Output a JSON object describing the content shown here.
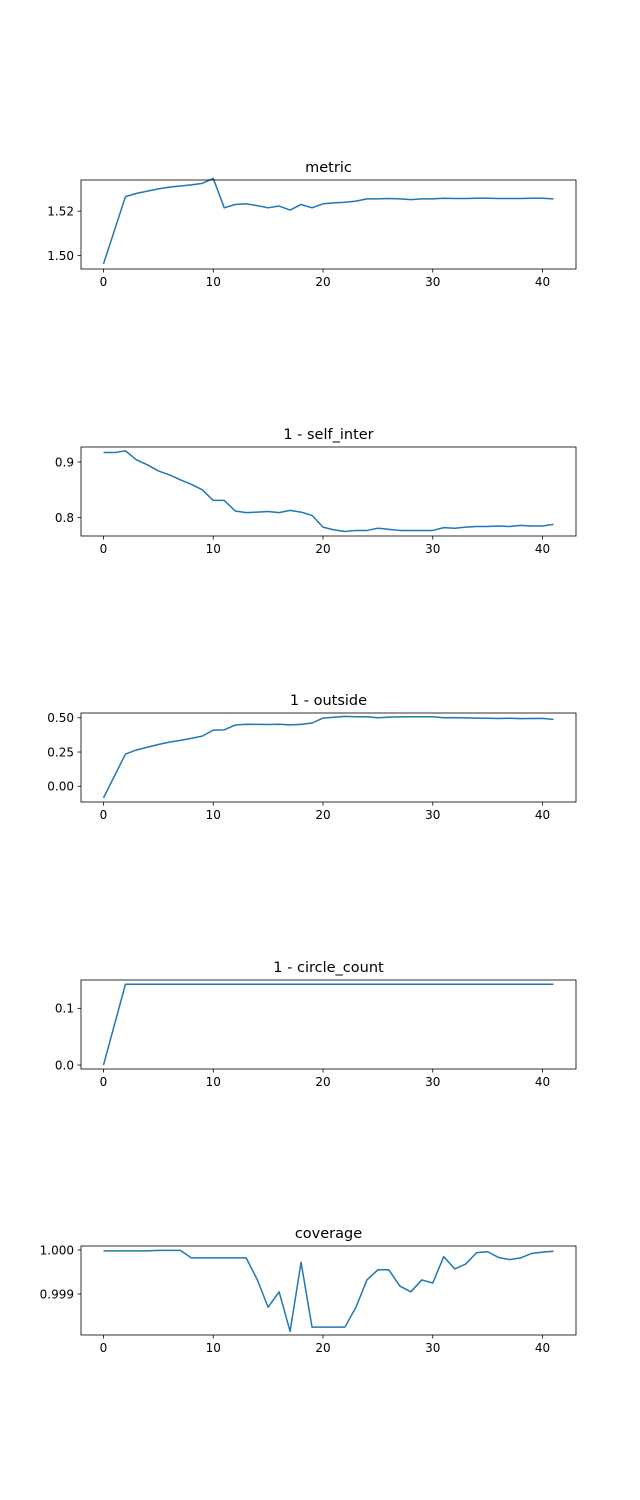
{
  "line_color": "#1f77b4",
  "chart_data": [
    {
      "type": "line",
      "title": "metric",
      "xlim": [
        -2.05,
        43.05
      ],
      "ylim": [
        1.494,
        1.534
      ],
      "xticks": [
        0,
        10,
        20,
        30,
        40
      ],
      "xtick_labels": [
        "0",
        "10",
        "20",
        "30",
        "40"
      ],
      "yticks": [
        1.5,
        1.52
      ],
      "ytick_labels": [
        "1.50",
        "1.52"
      ],
      "grid": false,
      "series": [
        {
          "x": [
            0,
            2,
            3,
            4,
            5,
            6,
            7,
            8,
            9,
            10,
            11,
            12,
            13,
            14,
            15,
            16,
            17,
            18,
            19,
            20,
            21,
            22,
            23,
            24,
            25,
            26,
            27,
            28,
            29,
            30,
            31,
            32,
            33,
            34,
            35,
            36,
            37,
            38,
            39,
            40,
            41
          ],
          "values": [
            1.4963,
            1.5265,
            1.528,
            1.529,
            1.53,
            1.5308,
            1.5313,
            1.5318,
            1.5325,
            1.5347,
            1.5215,
            1.523,
            1.5233,
            1.5225,
            1.5215,
            1.5223,
            1.5205,
            1.523,
            1.5215,
            1.5233,
            1.5237,
            1.524,
            1.5245,
            1.5255,
            1.5255,
            1.5257,
            1.5255,
            1.5252,
            1.5255,
            1.5255,
            1.5258,
            1.5257,
            1.5257,
            1.5258,
            1.5258,
            1.5257,
            1.5257,
            1.5257,
            1.5258,
            1.5258,
            1.5255
          ]
        }
      ]
    },
    {
      "type": "line",
      "title": "1 - self_inter",
      "xlim": [
        -2.05,
        43.05
      ],
      "ylim": [
        0.767,
        0.927
      ],
      "xticks": [
        0,
        10,
        20,
        30,
        40
      ],
      "xtick_labels": [
        "0",
        "10",
        "20",
        "30",
        "40"
      ],
      "yticks": [
        0.8,
        0.9
      ],
      "ytick_labels": [
        "0.8",
        "0.9"
      ],
      "grid": false,
      "series": [
        {
          "x": [
            0,
            1,
            2,
            3,
            4,
            5,
            6,
            7,
            8,
            9,
            10,
            11,
            12,
            13,
            14,
            15,
            16,
            17,
            18,
            19,
            20,
            21,
            22,
            23,
            24,
            25,
            26,
            27,
            28,
            29,
            30,
            31,
            32,
            33,
            34,
            35,
            36,
            37,
            38,
            39,
            40,
            41
          ],
          "values": [
            0.917,
            0.917,
            0.92,
            0.904,
            0.895,
            0.884,
            0.877,
            0.868,
            0.86,
            0.85,
            0.831,
            0.831,
            0.812,
            0.809,
            0.81,
            0.811,
            0.809,
            0.813,
            0.81,
            0.804,
            0.783,
            0.778,
            0.775,
            0.777,
            0.777,
            0.781,
            0.779,
            0.777,
            0.777,
            0.777,
            0.777,
            0.782,
            0.781,
            0.783,
            0.784,
            0.784,
            0.785,
            0.784,
            0.786,
            0.785,
            0.785,
            0.788
          ]
        }
      ]
    },
    {
      "type": "line",
      "title": "1 - outside",
      "xlim": [
        -2.05,
        43.05
      ],
      "ylim": [
        -0.115,
        0.535
      ],
      "xticks": [
        0,
        10,
        20,
        30,
        40
      ],
      "xtick_labels": [
        "0",
        "10",
        "20",
        "30",
        "40"
      ],
      "yticks": [
        0.0,
        0.25,
        0.5
      ],
      "ytick_labels": [
        "0.00",
        "0.25",
        "0.50"
      ],
      "grid": false,
      "series": [
        {
          "x": [
            0,
            2,
            3,
            4,
            5,
            6,
            7,
            8,
            9,
            10,
            11,
            12,
            13,
            14,
            15,
            16,
            17,
            18,
            19,
            20,
            21,
            22,
            23,
            24,
            25,
            26,
            27,
            28,
            29,
            30,
            31,
            32,
            33,
            34,
            35,
            36,
            37,
            38,
            39,
            40,
            41
          ],
          "values": [
            -0.085,
            0.235,
            0.265,
            0.285,
            0.305,
            0.322,
            0.335,
            0.35,
            0.366,
            0.41,
            0.412,
            0.447,
            0.453,
            0.452,
            0.451,
            0.453,
            0.448,
            0.452,
            0.462,
            0.498,
            0.504,
            0.51,
            0.508,
            0.508,
            0.5,
            0.505,
            0.507,
            0.508,
            0.508,
            0.508,
            0.5,
            0.501,
            0.499,
            0.498,
            0.497,
            0.495,
            0.497,
            0.494,
            0.495,
            0.496,
            0.488
          ]
        }
      ]
    },
    {
      "type": "line",
      "title": "1 - circle_count",
      "xlim": [
        -2.05,
        43.05
      ],
      "ylim": [
        -0.007,
        0.15
      ],
      "xticks": [
        0,
        10,
        20,
        30,
        40
      ],
      "xtick_labels": [
        "0",
        "10",
        "20",
        "30",
        "40"
      ],
      "yticks": [
        0.0,
        0.1
      ],
      "ytick_labels": [
        "0.0",
        "0.1"
      ],
      "grid": false,
      "series": [
        {
          "x": [
            0,
            2,
            41
          ],
          "values": [
            0.0,
            0.1425,
            0.1425
          ]
        }
      ]
    },
    {
      "type": "line",
      "title": "coverage",
      "xlim": [
        -2.05,
        43.05
      ],
      "ylim": [
        0.99807,
        1.00009
      ],
      "xticks": [
        0,
        10,
        20,
        30,
        40
      ],
      "xtick_labels": [
        "0",
        "10",
        "20",
        "30",
        "40"
      ],
      "yticks": [
        0.999,
        1.0
      ],
      "ytick_labels": [
        "0.999",
        "1.000"
      ],
      "grid": false,
      "series": [
        {
          "x": [
            0,
            1,
            2,
            3,
            4,
            5,
            6,
            7,
            8,
            9,
            10,
            11,
            12,
            13,
            14,
            15,
            16,
            17,
            18,
            19,
            20,
            21,
            22,
            23,
            24,
            25,
            26,
            27,
            28,
            29,
            30,
            31,
            32,
            33,
            34,
            35,
            36,
            37,
            38,
            39,
            40,
            41
          ],
          "values": [
            0.99998,
            0.99998,
            0.99998,
            0.99998,
            0.99998,
            0.99999,
            0.99999,
            0.99999,
            0.99982,
            0.99982,
            0.99982,
            0.99982,
            0.99982,
            0.99982,
            0.99933,
            0.9987,
            0.99905,
            0.99815,
            0.99972,
            0.99825,
            0.99825,
            0.99825,
            0.99825,
            0.9987,
            0.99932,
            0.99955,
            0.99955,
            0.99918,
            0.99905,
            0.99932,
            0.99925,
            0.99985,
            0.99957,
            0.99968,
            0.99994,
            0.99996,
            0.99983,
            0.99978,
            0.99982,
            0.99992,
            0.99995,
            0.99997
          ]
        }
      ]
    }
  ]
}
